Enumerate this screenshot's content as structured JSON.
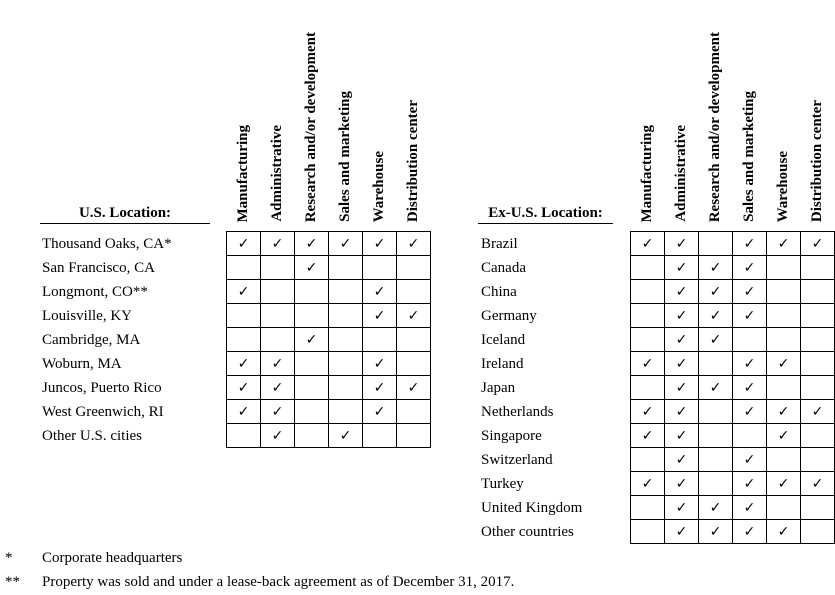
{
  "columns": [
    "Manufacturing",
    "Administrative",
    "Research and/or development",
    "Sales and marketing",
    "Warehouse",
    "Distribution center"
  ],
  "check_mark": "✓",
  "us": {
    "title": "U.S. Location:",
    "rows": [
      {
        "label": "Thousand Oaks, CA*",
        "checks": [
          1,
          1,
          1,
          1,
          1,
          1
        ]
      },
      {
        "label": "San Francisco, CA",
        "checks": [
          0,
          0,
          1,
          0,
          0,
          0
        ]
      },
      {
        "label": "Longmont, CO**",
        "checks": [
          1,
          0,
          0,
          0,
          1,
          0
        ]
      },
      {
        "label": "Louisville, KY",
        "checks": [
          0,
          0,
          0,
          0,
          1,
          1
        ]
      },
      {
        "label": "Cambridge, MA",
        "checks": [
          0,
          0,
          1,
          0,
          0,
          0
        ]
      },
      {
        "label": "Woburn, MA",
        "checks": [
          1,
          1,
          0,
          0,
          1,
          0
        ]
      },
      {
        "label": "Juncos, Puerto Rico",
        "checks": [
          1,
          1,
          0,
          0,
          1,
          1
        ]
      },
      {
        "label": "West Greenwich, RI",
        "checks": [
          1,
          1,
          0,
          0,
          1,
          0
        ]
      },
      {
        "label": "Other U.S. cities",
        "checks": [
          0,
          1,
          0,
          1,
          0,
          0
        ]
      }
    ]
  },
  "exus": {
    "title": "Ex-U.S. Location:",
    "rows": [
      {
        "label": "Brazil",
        "checks": [
          1,
          1,
          0,
          1,
          1,
          1
        ]
      },
      {
        "label": "Canada",
        "checks": [
          0,
          1,
          1,
          1,
          0,
          0
        ]
      },
      {
        "label": "China",
        "checks": [
          0,
          1,
          1,
          1,
          0,
          0
        ]
      },
      {
        "label": "Germany",
        "checks": [
          0,
          1,
          1,
          1,
          0,
          0
        ]
      },
      {
        "label": "Iceland",
        "checks": [
          0,
          1,
          1,
          0,
          0,
          0
        ]
      },
      {
        "label": "Ireland",
        "checks": [
          1,
          1,
          0,
          1,
          1,
          0
        ]
      },
      {
        "label": "Japan",
        "checks": [
          0,
          1,
          1,
          1,
          0,
          0
        ]
      },
      {
        "label": "Netherlands",
        "checks": [
          1,
          1,
          0,
          1,
          1,
          1
        ]
      },
      {
        "label": "Singapore",
        "checks": [
          1,
          1,
          0,
          0,
          1,
          0
        ]
      },
      {
        "label": "Switzerland",
        "checks": [
          0,
          1,
          0,
          1,
          0,
          0
        ]
      },
      {
        "label": "Turkey",
        "checks": [
          1,
          1,
          0,
          1,
          1,
          1
        ]
      },
      {
        "label": "United Kingdom",
        "checks": [
          0,
          1,
          1,
          1,
          0,
          0
        ]
      },
      {
        "label": "Other countries",
        "checks": [
          0,
          1,
          1,
          1,
          1,
          0
        ]
      }
    ]
  },
  "footnotes": [
    {
      "mark": "*",
      "text": "Corporate headquarters"
    },
    {
      "mark": "**",
      "text": "Property was sold and under a lease-back agreement as of December 31, 2017."
    }
  ]
}
